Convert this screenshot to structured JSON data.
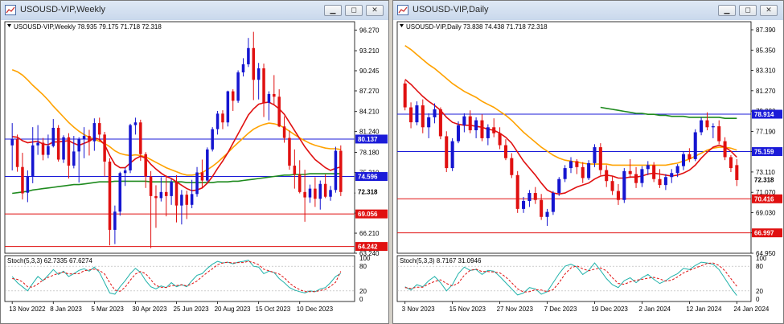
{
  "left": {
    "title": "USOUSD-VIP,Weekly",
    "ohlc": "USOUSD-VIP,Weekly  78.935 79.175 71.718 72.318",
    "stoch_label": "Stoch(5,3,3) 62.7335 67.6274",
    "y_ticks": [
      "96.270",
      "93.210",
      "90.245",
      "87.270",
      "84.210",
      "81.240",
      "78.180",
      "75.210",
      "72.150",
      "69.180",
      "66.210",
      "63.240"
    ],
    "y_tick_values": [
      96.27,
      93.21,
      90.245,
      87.27,
      84.21,
      81.24,
      78.18,
      75.21,
      72.15,
      69.18,
      66.21,
      63.24
    ],
    "price_range": [
      63.24,
      97.5
    ],
    "stoch_ticks": [
      "100",
      "80",
      "20",
      "0"
    ],
    "x_labels": [
      "13 Nov 2022",
      "8 Jan 2023",
      "5 Mar 2023",
      "30 Apr 2023",
      "25 Jun 2023",
      "20 Aug 2023",
      "15 Oct 2023",
      "10 Dec 2023"
    ],
    "x_label_index": [
      0,
      8,
      16,
      24,
      32,
      40,
      48,
      56
    ],
    "hlines": [
      {
        "value": 80.137,
        "label": "80.137",
        "color": "#1b1bd8",
        "text": "#ffffff"
      },
      {
        "value": 74.596,
        "label": "74.596",
        "color": "#1b1bd8",
        "text": "#ffffff"
      },
      {
        "value": 72.318,
        "label": "72.318",
        "color": "#000000",
        "text": "#ffffff",
        "style": "price"
      },
      {
        "value": 69.056,
        "label": "69.056",
        "color": "#e01010",
        "text": "#ffffff"
      },
      {
        "value": 64.242,
        "label": "64.242",
        "color": "#e01010",
        "text": "#ffffff"
      }
    ],
    "candles": [
      [
        79.2,
        82.5,
        75.5,
        80.1
      ],
      [
        80.1,
        80.8,
        75.3,
        76.0
      ],
      [
        76.0,
        78.1,
        71.2,
        72.1
      ],
      [
        72.2,
        75.5,
        70.8,
        74.6
      ],
      [
        74.6,
        81.9,
        73.6,
        79.2
      ],
      [
        79.2,
        82.2,
        77.8,
        79.6
      ],
      [
        79.6,
        80.3,
        77.0,
        77.8
      ],
      [
        77.8,
        80.8,
        77.3,
        79.1
      ],
      [
        79.1,
        83.1,
        78.9,
        81.8
      ],
      [
        81.8,
        82.2,
        76.8,
        77.1
      ],
      [
        77.1,
        80.7,
        76.6,
        80.4
      ],
      [
        80.4,
        81.0,
        74.3,
        76.2
      ],
      [
        76.2,
        80.6,
        75.8,
        78.3
      ],
      [
        78.3,
        80.4,
        73.7,
        80.1
      ],
      [
        80.1,
        81.9,
        77.3,
        80.6
      ],
      [
        80.6,
        81.5,
        77.7,
        79.8
      ],
      [
        79.8,
        83.2,
        78.4,
        82.5
      ],
      [
        82.5,
        83.3,
        79.8,
        80.8
      ],
      [
        80.8,
        81.2,
        74.6,
        76.8
      ],
      [
        76.8,
        77.3,
        64.4,
        66.7
      ],
      [
        66.7,
        70.3,
        64.6,
        69.4
      ],
      [
        69.4,
        75.3,
        68.8,
        75.1
      ],
      [
        75.1,
        75.9,
        73.2,
        75.5
      ],
      [
        75.5,
        82.4,
        75.1,
        82.2
      ],
      [
        82.2,
        83.3,
        80.8,
        82.6
      ],
      [
        82.6,
        83.0,
        76.9,
        77.9
      ],
      [
        77.9,
        78.2,
        72.9,
        74.6
      ],
      [
        74.6,
        75.4,
        64.0,
        71.7
      ],
      [
        71.7,
        73.3,
        67.0,
        71.4
      ],
      [
        71.4,
        74.5,
        70.9,
        72.3
      ],
      [
        72.3,
        74.8,
        68.7,
        71.7
      ],
      [
        71.7,
        74.2,
        70.4,
        73.8
      ],
      [
        73.8,
        74.8,
        67.8,
        70.3
      ],
      [
        70.3,
        72.6,
        67.5,
        71.9
      ],
      [
        71.9,
        72.5,
        68.3,
        70.4
      ],
      [
        70.4,
        74.1,
        69.9,
        72.0
      ],
      [
        72.0,
        76.0,
        71.6,
        75.2
      ],
      [
        75.2,
        77.1,
        72.9,
        74.0
      ],
      [
        74.0,
        78.9,
        73.8,
        78.6
      ],
      [
        78.6,
        81.9,
        78.3,
        81.6
      ],
      [
        81.6,
        84.3,
        80.8,
        83.9
      ],
      [
        83.9,
        84.4,
        81.6,
        82.6
      ],
      [
        82.6,
        87.3,
        82.0,
        87.2
      ],
      [
        87.2,
        87.5,
        84.3,
        85.8
      ],
      [
        85.8,
        90.3,
        85.5,
        90.0
      ],
      [
        90.0,
        92.1,
        89.4,
        91.2
      ],
      [
        91.2,
        95.1,
        90.8,
        93.6
      ],
      [
        93.6,
        96.0,
        85.9,
        88.9
      ],
      [
        88.9,
        91.4,
        86.0,
        90.6
      ],
      [
        90.6,
        91.3,
        83.4,
        85.5
      ],
      [
        85.5,
        87.2,
        82.9,
        86.8
      ],
      [
        86.8,
        89.6,
        85.2,
        86.4
      ],
      [
        86.4,
        87.5,
        81.9,
        82.0
      ],
      [
        82.0,
        83.5,
        79.6,
        80.3
      ],
      [
        80.3,
        81.4,
        75.6,
        76.2
      ],
      [
        76.2,
        78.6,
        72.8,
        74.9
      ],
      [
        74.9,
        77.0,
        72.1,
        72.3
      ],
      [
        72.3,
        75.6,
        67.9,
        71.5
      ],
      [
        71.5,
        73.4,
        70.7,
        72.8
      ],
      [
        72.8,
        74.5,
        70.1,
        71.3
      ],
      [
        71.3,
        74.0,
        69.7,
        73.5
      ],
      [
        73.5,
        74.9,
        71.4,
        71.6
      ],
      [
        71.6,
        73.2,
        71.0,
        72.6
      ],
      [
        72.6,
        79.0,
        72.2,
        78.4
      ],
      [
        78.4,
        79.2,
        71.7,
        72.3
      ]
    ],
    "ma_red": [
      80.5,
      80.4,
      79.9,
      79.6,
      79.7,
      79.8,
      79.4,
      79.3,
      79.7,
      79.7,
      79.8,
      79.9,
      79.5,
      79.2,
      79.5,
      79.8,
      80.3,
      80.1,
      79.3,
      77.7,
      76.4,
      75.9,
      75.9,
      76.6,
      77.2,
      77.6,
      77.3,
      76.4,
      75.7,
      75.1,
      74.6,
      74.3,
      73.8,
      73.3,
      72.8,
      72.5,
      72.6,
      72.9,
      73.6,
      74.6,
      75.8,
      76.9,
      78.1,
      79.5,
      80.9,
      82.3,
      83.7,
      84.6,
      85.3,
      85.5,
      85.6,
      85.2,
      84.6,
      83.8,
      82.6,
      81.4,
      80.2,
      79.0,
      78.0,
      77.1,
      76.5,
      75.9,
      75.5,
      75.8,
      76.0
    ],
    "ma_orange": [
      90.4,
      90.1,
      89.6,
      88.9,
      88.1,
      87.4,
      86.7,
      85.9,
      85.0,
      84.2,
      83.4,
      82.6,
      81.9,
      81.3,
      80.8,
      80.4,
      80.1,
      79.8,
      79.5,
      79.0,
      78.4,
      78.0,
      77.8,
      77.7,
      77.8,
      77.7,
      77.5,
      77.1,
      76.7,
      76.3,
      75.9,
      75.6,
      75.3,
      75.0,
      74.8,
      74.8,
      74.9,
      75.2,
      75.6,
      76.1,
      76.7,
      77.4,
      78.1,
      78.9,
      79.6,
      80.3,
      81.0,
      81.6,
      82.0,
      82.3,
      82.5,
      82.4,
      82.2,
      81.8,
      81.3,
      80.8,
      80.3,
      79.9,
      79.5,
      79.2,
      79.0,
      78.8,
      78.7,
      78.7,
      78.6
    ],
    "ma_green": [
      72.1,
      72.2,
      72.3,
      72.4,
      72.6,
      72.7,
      72.8,
      72.9,
      73.0,
      73.1,
      73.2,
      73.3,
      73.4,
      73.4,
      73.5,
      73.6,
      73.7,
      73.8,
      73.8,
      73.8,
      73.9,
      73.9,
      73.9,
      73.9,
      73.9,
      73.9,
      73.9,
      73.8,
      73.8,
      73.8,
      73.8,
      73.8,
      73.8,
      73.8,
      73.7,
      73.7,
      73.7,
      73.7,
      73.7,
      73.7,
      73.8,
      73.8,
      73.8,
      73.9,
      73.9,
      74.0,
      74.1,
      74.2,
      74.3,
      74.4,
      74.5,
      74.6,
      74.7,
      74.8,
      74.8,
      74.9,
      74.9,
      74.9,
      75.0,
      75.0,
      75.0,
      75.0,
      75.0,
      75.0,
      75.0
    ],
    "stoch_k": [
      55,
      40,
      30,
      20,
      38,
      55,
      45,
      58,
      72,
      60,
      68,
      55,
      62,
      70,
      74,
      68,
      78,
      65,
      40,
      15,
      12,
      30,
      45,
      62,
      75,
      65,
      45,
      30,
      25,
      32,
      28,
      40,
      30,
      35,
      30,
      45,
      58,
      62,
      75,
      85,
      92,
      88,
      90,
      86,
      90,
      92,
      95,
      80,
      78,
      62,
      68,
      65,
      50,
      40,
      28,
      22,
      18,
      15,
      20,
      18,
      25,
      28,
      40,
      55,
      62.7
    ],
    "stoch_d": [
      50,
      48,
      42,
      30,
      29,
      37,
      46,
      53,
      58,
      63,
      66,
      61,
      62,
      62,
      69,
      71,
      73,
      70,
      61,
      40,
      22,
      19,
      29,
      46,
      61,
      67,
      62,
      47,
      33,
      29,
      28,
      33,
      33,
      35,
      32,
      37,
      44,
      55,
      65,
      74,
      84,
      88,
      90,
      88,
      89,
      89,
      92,
      89,
      84,
      73,
      69,
      65,
      61,
      52,
      39,
      30,
      23,
      18,
      18,
      18,
      21,
      24,
      31,
      41,
      67.6
    ]
  },
  "right": {
    "title": "USOUSD-VIP,Daily",
    "ohlc": "USOUSD-VIP,Daily  73.838 74.438 71.718 72.318",
    "stoch_label": "Stoch(5,3,3) 8.7167 31.0946",
    "y_ticks": [
      "87.390",
      "85.350",
      "83.310",
      "81.270",
      "79.230",
      "77.190",
      "75.150",
      "73.110",
      "71.070",
      "69.030",
      "66.990",
      "64.950"
    ],
    "y_tick_values": [
      87.39,
      85.35,
      83.31,
      81.27,
      79.23,
      77.19,
      75.15,
      73.11,
      71.07,
      69.03,
      66.99,
      64.95
    ],
    "price_range": [
      64.95,
      88.2
    ],
    "stoch_ticks": [
      "100",
      "80",
      "20",
      "0"
    ],
    "x_labels": [
      "3 Nov 2023",
      "15 Nov 2023",
      "27 Nov 2023",
      "7 Dec 2023",
      "19 Dec 2023",
      "2 Jan 2024",
      "12 Jan 2024",
      "24 Jan 2024"
    ],
    "x_label_index": [
      0,
      8,
      16,
      24,
      32,
      40,
      48,
      56
    ],
    "hlines": [
      {
        "value": 78.914,
        "label": "78.914",
        "color": "#1b1bd8",
        "text": "#ffffff"
      },
      {
        "value": 75.159,
        "label": "75.159",
        "color": "#1b1bd8",
        "text": "#ffffff"
      },
      {
        "value": 72.318,
        "label": "72.318",
        "color": "#000000",
        "text": "#ffffff",
        "style": "price"
      },
      {
        "value": 70.416,
        "label": "70.416",
        "color": "#e01010",
        "text": "#ffffff"
      },
      {
        "value": 66.997,
        "label": "66.997",
        "color": "#e01010",
        "text": "#ffffff"
      }
    ],
    "candles": [
      [
        82.0,
        82.3,
        79.3,
        79.6
      ],
      [
        79.6,
        80.1,
        77.5,
        78.1
      ],
      [
        78.1,
        80.2,
        77.8,
        79.8
      ],
      [
        79.8,
        80.4,
        77.0,
        77.6
      ],
      [
        77.6,
        79.0,
        76.5,
        78.6
      ],
      [
        78.6,
        80.0,
        78.0,
        79.4
      ],
      [
        79.4,
        79.6,
        76.4,
        76.7
      ],
      [
        76.7,
        77.2,
        73.1,
        73.5
      ],
      [
        73.5,
        76.5,
        73.2,
        76.2
      ],
      [
        76.2,
        78.2,
        76.0,
        77.8
      ],
      [
        77.8,
        79.0,
        77.1,
        78.7
      ],
      [
        78.7,
        79.3,
        77.0,
        77.3
      ],
      [
        77.3,
        78.6,
        76.5,
        78.3
      ],
      [
        78.3,
        78.9,
        76.2,
        76.5
      ],
      [
        76.5,
        77.9,
        75.8,
        77.6
      ],
      [
        77.6,
        78.5,
        76.6,
        77.0
      ],
      [
        77.0,
        77.6,
        75.4,
        75.8
      ],
      [
        75.8,
        76.4,
        74.3,
        74.5
      ],
      [
        74.5,
        75.0,
        72.5,
        72.8
      ],
      [
        72.8,
        73.2,
        69.0,
        69.4
      ],
      [
        69.4,
        70.6,
        69.0,
        70.2
      ],
      [
        70.2,
        71.3,
        69.6,
        71.0
      ],
      [
        71.0,
        71.6,
        69.9,
        70.3
      ],
      [
        70.3,
        70.9,
        68.3,
        68.6
      ],
      [
        68.6,
        69.4,
        67.7,
        69.1
      ],
      [
        69.1,
        71.2,
        68.8,
        71.0
      ],
      [
        71.0,
        72.6,
        70.7,
        72.4
      ],
      [
        72.4,
        73.8,
        72.1,
        73.5
      ],
      [
        73.5,
        74.6,
        73.0,
        74.2
      ],
      [
        74.2,
        74.4,
        72.9,
        73.6
      ],
      [
        73.6,
        74.1,
        72.0,
        72.5
      ],
      [
        72.5,
        74.3,
        72.3,
        74.0
      ],
      [
        74.0,
        75.9,
        73.6,
        75.6
      ],
      [
        75.6,
        76.0,
        72.8,
        73.3
      ],
      [
        73.3,
        73.8,
        71.6,
        72.2
      ],
      [
        72.2,
        72.7,
        70.8,
        71.2
      ],
      [
        71.2,
        71.9,
        69.8,
        70.3
      ],
      [
        70.3,
        73.5,
        70.0,
        73.2
      ],
      [
        73.2,
        74.4,
        72.5,
        72.9
      ],
      [
        72.9,
        73.6,
        71.5,
        72.0
      ],
      [
        72.0,
        73.7,
        71.6,
        73.4
      ],
      [
        73.4,
        74.2,
        72.8,
        73.8
      ],
      [
        73.8,
        74.1,
        72.1,
        72.4
      ],
      [
        72.4,
        73.4,
        71.5,
        71.8
      ],
      [
        71.8,
        72.9,
        71.3,
        72.6
      ],
      [
        72.6,
        73.4,
        72.0,
        73.0
      ],
      [
        73.0,
        73.9,
        72.6,
        73.7
      ],
      [
        73.7,
        75.2,
        73.3,
        74.9
      ],
      [
        74.9,
        75.5,
        74.1,
        74.4
      ],
      [
        74.4,
        77.4,
        74.2,
        77.1
      ],
      [
        77.1,
        78.6,
        76.8,
        78.3
      ],
      [
        78.3,
        79.1,
        77.3,
        77.6
      ],
      [
        77.6,
        78.0,
        76.5,
        77.7
      ],
      [
        77.7,
        78.3,
        75.9,
        76.2
      ],
      [
        76.2,
        76.6,
        74.3,
        74.6
      ],
      [
        74.6,
        74.8,
        73.1,
        73.5
      ],
      [
        73.8,
        74.4,
        71.7,
        72.3
      ]
    ],
    "ma_red": [
      82.4,
      81.9,
      81.3,
      80.7,
      80.2,
      79.8,
      79.3,
      78.6,
      78.1,
      77.9,
      77.8,
      77.8,
      77.7,
      77.6,
      77.4,
      77.3,
      77.0,
      76.6,
      76.0,
      75.1,
      74.2,
      73.5,
      72.8,
      72.0,
      71.3,
      71.0,
      70.9,
      71.0,
      71.3,
      71.6,
      71.8,
      72.0,
      72.4,
      72.7,
      72.8,
      72.7,
      72.5,
      72.5,
      72.6,
      72.6,
      72.7,
      72.9,
      73.0,
      72.9,
      72.8,
      72.7,
      72.8,
      73.0,
      73.3,
      73.8,
      74.5,
      75.1,
      75.6,
      75.8,
      75.6,
      75.2,
      74.6
    ],
    "ma_orange": [
      85.8,
      85.4,
      84.9,
      84.4,
      83.9,
      83.5,
      83.0,
      82.5,
      82.0,
      81.6,
      81.2,
      80.9,
      80.6,
      80.2,
      79.9,
      79.6,
      79.2,
      78.8,
      78.3,
      77.7,
      77.1,
      76.6,
      76.1,
      75.6,
      75.2,
      74.8,
      74.5,
      74.3,
      74.2,
      74.1,
      74.0,
      73.9,
      73.9,
      73.9,
      73.9,
      73.8,
      73.8,
      73.8,
      73.8,
      73.8,
      73.8,
      73.8,
      73.8,
      73.8,
      73.8,
      73.9,
      74.0,
      74.2,
      74.4,
      74.7,
      75.0,
      75.3,
      75.5,
      75.6,
      75.6,
      75.5,
      75.3
    ],
    "ma_green": [
      null,
      null,
      null,
      null,
      null,
      null,
      null,
      null,
      null,
      null,
      null,
      null,
      null,
      null,
      null,
      null,
      null,
      null,
      null,
      null,
      null,
      null,
      null,
      null,
      null,
      null,
      null,
      null,
      null,
      null,
      null,
      null,
      null,
      79.6,
      79.5,
      79.4,
      79.3,
      79.2,
      79.1,
      79.0,
      79.0,
      78.9,
      78.9,
      78.8,
      78.8,
      78.7,
      78.7,
      78.7,
      78.6,
      78.6,
      78.6,
      78.6,
      78.6,
      78.6,
      78.5,
      78.5,
      78.5
    ],
    "stoch_k": [
      30,
      22,
      35,
      30,
      45,
      55,
      40,
      20,
      35,
      62,
      78,
      70,
      72,
      60,
      70,
      68,
      55,
      40,
      25,
      10,
      15,
      28,
      25,
      12,
      18,
      40,
      62,
      80,
      85,
      78,
      60,
      70,
      88,
      70,
      50,
      35,
      28,
      45,
      52,
      40,
      52,
      60,
      48,
      38,
      45,
      55,
      62,
      75,
      72,
      82,
      90,
      88,
      85,
      72,
      50,
      28,
      8.7
    ],
    "stoch_d": [
      28,
      26,
      29,
      29,
      37,
      43,
      47,
      38,
      32,
      39,
      58,
      70,
      73,
      67,
      67,
      66,
      64,
      54,
      40,
      25,
      17,
      18,
      23,
      22,
      18,
      23,
      40,
      61,
      76,
      81,
      74,
      69,
      73,
      76,
      69,
      52,
      38,
      36,
      42,
      46,
      48,
      51,
      53,
      49,
      44,
      46,
      54,
      64,
      70,
      76,
      81,
      87,
      88,
      82,
      69,
      50,
      31.1
    ]
  }
}
